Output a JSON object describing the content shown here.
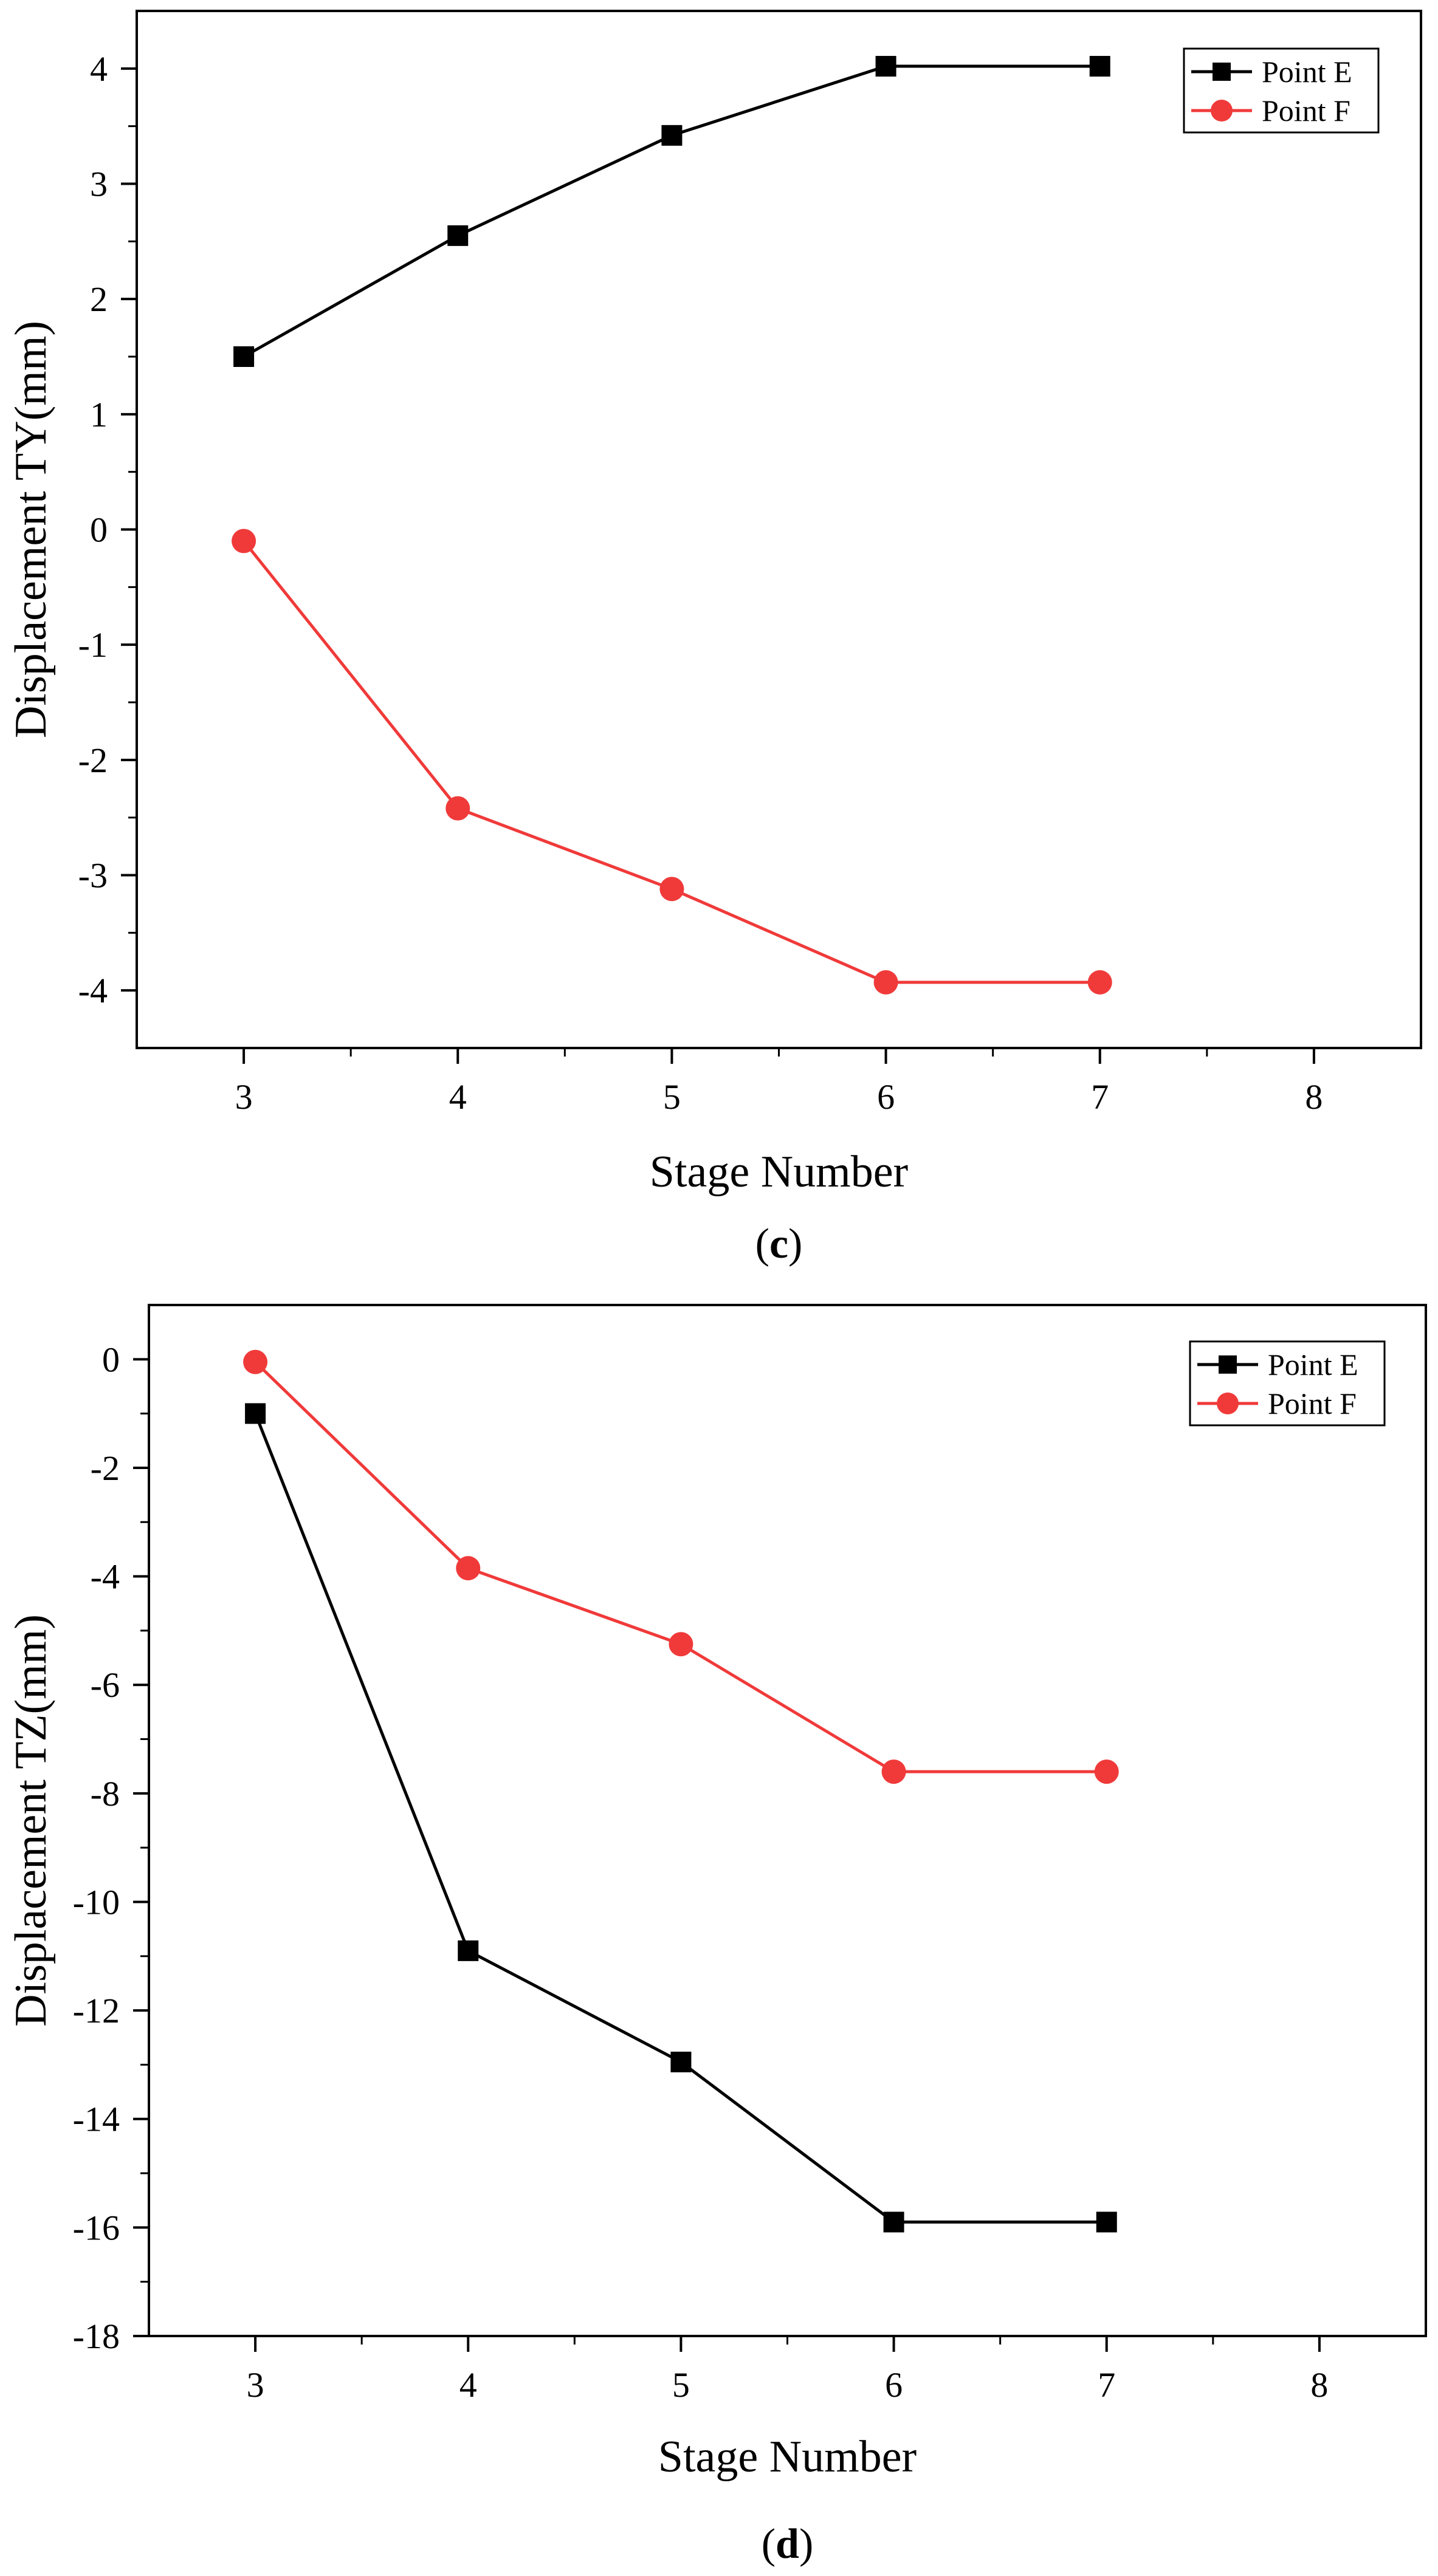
{
  "chart_data": [
    {
      "id": "c",
      "type": "line",
      "caption_open": "(",
      "caption_letter": "c",
      "caption_close": ")",
      "xlabel": "Stage Number",
      "ylabel": "Displacement TY(mm)",
      "xlim": [
        2.5,
        8.5
      ],
      "ylim": [
        -4.5,
        4.5
      ],
      "xticks": [
        3,
        4,
        5,
        6,
        7,
        8
      ],
      "yticks": [
        -4,
        -3,
        -2,
        -1,
        0,
        1,
        2,
        3,
        4
      ],
      "grid": false,
      "legend_position": "top-right",
      "series": [
        {
          "name": "Point E",
          "color": "#000000",
          "marker": "square",
          "x": [
            3,
            4,
            5,
            6,
            7
          ],
          "y": [
            1.5,
            2.55,
            3.42,
            4.02,
            4.02
          ]
        },
        {
          "name": "Point F",
          "color": "#f03a3a",
          "marker": "circle",
          "x": [
            3,
            4,
            5,
            6,
            7
          ],
          "y": [
            -0.1,
            -2.42,
            -3.12,
            -3.93,
            -3.93
          ]
        }
      ]
    },
    {
      "id": "d",
      "type": "line",
      "caption_open": "(",
      "caption_letter": "d",
      "caption_close": ")",
      "xlabel": "Stage Number",
      "ylabel": "Displacement TZ(mm)",
      "xlim": [
        2.5,
        8.5
      ],
      "ylim": [
        -18,
        1
      ],
      "xticks": [
        3,
        4,
        5,
        6,
        7,
        8
      ],
      "yticks": [
        -18,
        -16,
        -14,
        -12,
        -10,
        -8,
        -6,
        -4,
        -2,
        0
      ],
      "grid": false,
      "legend_position": "top-right",
      "series": [
        {
          "name": "Point E",
          "color": "#000000",
          "marker": "square",
          "x": [
            3,
            4,
            5,
            6,
            7
          ],
          "y": [
            -1.0,
            -10.9,
            -12.95,
            -15.9,
            -15.9
          ]
        },
        {
          "name": "Point F",
          "color": "#f03a3a",
          "marker": "circle",
          "x": [
            3,
            4,
            5,
            6,
            7
          ],
          "y": [
            -0.05,
            -3.85,
            -5.25,
            -7.6,
            -7.6
          ]
        }
      ]
    }
  ]
}
